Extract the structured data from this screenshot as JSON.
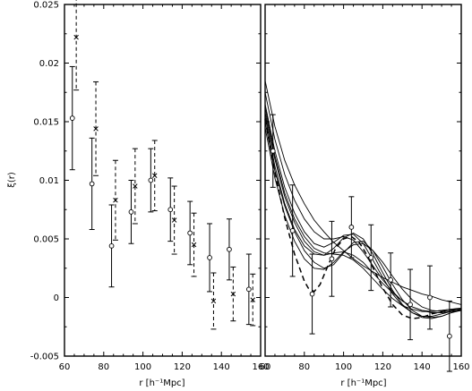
{
  "chart_data": [
    {
      "type": "scatter",
      "ylabel": "ξ(r)",
      "xlabel": "r [h⁻¹Mpc]",
      "xlim": [
        60,
        160
      ],
      "ylim": [
        -0.005,
        0.025
      ],
      "x_ticks": [
        "60",
        "80",
        "100",
        "120",
        "140",
        "160"
      ],
      "y_ticks": [
        "-0.005",
        "0",
        "0.005",
        "0.01",
        "0.015",
        "0.02",
        "0.025"
      ],
      "series": [
        {
          "marker": "circle",
          "errorbar_style": "solid",
          "points": [
            {
              "x": 64,
              "y": 0.0153,
              "err": 0.0044
            },
            {
              "x": 74,
              "y": 0.0097,
              "err": 0.0039
            },
            {
              "x": 84,
              "y": 0.0044,
              "err": 0.0035
            },
            {
              "x": 94,
              "y": 0.0073,
              "err": 0.0027
            },
            {
              "x": 104,
              "y": 0.01,
              "err": 0.0027
            },
            {
              "x": 114,
              "y": 0.0075,
              "err": 0.0027
            },
            {
              "x": 124,
              "y": 0.0055,
              "err": 0.0027
            },
            {
              "x": 134,
              "y": 0.0034,
              "err": 0.0029
            },
            {
              "x": 144,
              "y": 0.0041,
              "err": 0.0026
            },
            {
              "x": 154,
              "y": 0.0007,
              "err": 0.003
            }
          ]
        },
        {
          "marker": "cross",
          "errorbar_style": "dashed",
          "points": [
            {
              "x": 66,
              "y": 0.0222,
              "err": 0.0045
            },
            {
              "x": 76,
              "y": 0.0144,
              "err": 0.004
            },
            {
              "x": 86,
              "y": 0.0083,
              "err": 0.0034
            },
            {
              "x": 96,
              "y": 0.0095,
              "err": 0.0032
            },
            {
              "x": 106,
              "y": 0.0104,
              "err": 0.003
            },
            {
              "x": 116,
              "y": 0.0066,
              "err": 0.0029
            },
            {
              "x": 126,
              "y": 0.0045,
              "err": 0.0027
            },
            {
              "x": 136,
              "y": -0.0003,
              "err": 0.0024
            },
            {
              "x": 146,
              "y": 0.0003,
              "err": 0.0023
            },
            {
              "x": 156,
              "y": -0.0002,
              "err": 0.0022
            }
          ]
        }
      ]
    },
    {
      "type": "line",
      "xlabel": "r [h⁻¹Mpc]",
      "xlim": [
        60,
        160
      ],
      "ylim": [
        -0.005,
        0.025
      ],
      "x_ticks": [
        "60",
        "80",
        "100",
        "120",
        "140",
        "160"
      ],
      "points": [
        {
          "x": 64,
          "y": 0.0125,
          "err": 0.0031
        },
        {
          "x": 74,
          "y": 0.0057,
          "err": 0.0039
        },
        {
          "x": 84,
          "y": 0.0003,
          "err": 0.0034
        },
        {
          "x": 94,
          "y": 0.0033,
          "err": 0.0032
        },
        {
          "x": 104,
          "y": 0.006,
          "err": 0.0026
        },
        {
          "x": 114,
          "y": 0.0034,
          "err": 0.0028
        },
        {
          "x": 124,
          "y": 0.0015,
          "err": 0.0023
        },
        {
          "x": 134,
          "y": -0.0006,
          "err": 0.003
        },
        {
          "x": 144,
          "y": 0.0,
          "err": 0.0027
        },
        {
          "x": 154,
          "y": -0.0033,
          "err": 0.003
        }
      ],
      "models": [
        {
          "style": "solid",
          "x": [
            60,
            65,
            70,
            75,
            80,
            85,
            90,
            95,
            100,
            105,
            110,
            115,
            120,
            125,
            130,
            135,
            140,
            145,
            150,
            155,
            160
          ],
          "y": [
            0.0185,
            0.0146,
            0.0117,
            0.0096,
            0.008,
            0.0066,
            0.0056,
            0.0047,
            0.004,
            0.0033,
            0.0027,
            0.0022,
            0.0017,
            0.0013,
            0.0009,
            0.0006,
            0.0003,
            0.0001,
            -0.0002,
            -0.0004,
            -0.0006
          ]
        },
        {
          "style": "solid",
          "x": [
            60,
            65,
            70,
            75,
            80,
            85,
            90,
            95,
            100,
            105,
            110,
            115,
            120,
            125,
            130,
            135,
            140,
            145,
            150,
            155,
            160
          ],
          "y": [
            0.0175,
            0.0135,
            0.0105,
            0.0083,
            0.0067,
            0.0056,
            0.005,
            0.005,
            0.0052,
            0.0049,
            0.0039,
            0.0027,
            0.0015,
            0.0005,
            -0.0003,
            -0.0008,
            -0.0011,
            -0.0012,
            -0.0011,
            -0.001,
            -0.001
          ]
        },
        {
          "style": "solid",
          "x": [
            60,
            65,
            70,
            75,
            80,
            85,
            90,
            95,
            100,
            105,
            110,
            115,
            120,
            125,
            130,
            135,
            140,
            145,
            150,
            155,
            160
          ],
          "y": [
            0.0165,
            0.0125,
            0.0094,
            0.0072,
            0.0056,
            0.0046,
            0.0043,
            0.0047,
            0.0053,
            0.0054,
            0.0046,
            0.0032,
            0.0017,
            0.0003,
            -0.0007,
            -0.0013,
            -0.0016,
            -0.0016,
            -0.0014,
            -0.0012,
            -0.0011
          ]
        },
        {
          "style": "solid",
          "x": [
            60,
            65,
            70,
            75,
            80,
            85,
            90,
            95,
            100,
            105,
            110,
            115,
            120,
            125,
            130,
            135,
            140,
            145,
            150,
            155,
            160
          ],
          "y": [
            0.0158,
            0.0118,
            0.0086,
            0.0064,
            0.0048,
            0.0039,
            0.0036,
            0.0042,
            0.0051,
            0.0055,
            0.005,
            0.0037,
            0.0021,
            0.0006,
            -0.0006,
            -0.0013,
            -0.0017,
            -0.0018,
            -0.0016,
            -0.0013,
            -0.0011
          ]
        },
        {
          "style": "solid",
          "x": [
            60,
            65,
            70,
            75,
            80,
            85,
            90,
            95,
            100,
            105,
            110,
            115,
            120,
            125,
            130,
            135,
            140,
            145,
            150,
            155,
            160
          ],
          "y": [
            0.015,
            0.0108,
            0.0078,
            0.0056,
            0.004,
            0.003,
            0.0025,
            0.0028,
            0.0038,
            0.0047,
            0.0048,
            0.004,
            0.0026,
            0.0011,
            -0.0002,
            -0.0011,
            -0.0016,
            -0.0017,
            -0.0016,
            -0.0013,
            -0.001
          ]
        },
        {
          "style": "solid",
          "x": [
            60,
            65,
            70,
            75,
            80,
            85,
            90,
            95,
            100,
            105,
            110,
            115,
            120,
            125,
            130,
            135,
            140,
            145,
            150,
            155,
            160
          ],
          "y": [
            0.0145,
            0.0102,
            0.007,
            0.0048,
            0.0033,
            0.0025,
            0.0024,
            0.003,
            0.0039,
            0.0045,
            0.0046,
            0.004,
            0.003,
            0.0018,
            0.0007,
            -0.0002,
            -0.0008,
            -0.0011,
            -0.0012,
            -0.0011,
            -0.001
          ]
        },
        {
          "style": "solid",
          "x": [
            60,
            65,
            70,
            75,
            80,
            85,
            90,
            95,
            100,
            105,
            110,
            115,
            120,
            125,
            130,
            135,
            140,
            145,
            150,
            155,
            160
          ],
          "y": [
            0.0155,
            0.0112,
            0.008,
            0.0058,
            0.0044,
            0.0037,
            0.0036,
            0.0038,
            0.0039,
            0.0036,
            0.003,
            0.0021,
            0.0012,
            0.0004,
            -0.0003,
            -0.0008,
            -0.0011,
            -0.0013,
            -0.0013,
            -0.0012,
            -0.0011
          ]
        },
        {
          "style": "solid",
          "x": [
            60,
            65,
            70,
            75,
            80,
            85,
            90,
            95,
            100,
            105,
            110,
            115,
            120,
            125,
            130,
            135,
            140,
            145,
            150,
            155,
            160
          ],
          "y": [
            0.0162,
            0.0121,
            0.0089,
            0.0067,
            0.0052,
            0.0042,
            0.0038,
            0.0037,
            0.0036,
            0.0032,
            0.0025,
            0.0016,
            0.0007,
            -0.0001,
            -0.0007,
            -0.001,
            -0.0012,
            -0.0012,
            -0.0011,
            -0.001,
            -0.0009
          ]
        },
        {
          "style": "dashed",
          "x": [
            60,
            65,
            70,
            75,
            80,
            82,
            85,
            88,
            92,
            96,
            100,
            104,
            108,
            112,
            116,
            120,
            125,
            130,
            135,
            140,
            145,
            150,
            155,
            160
          ],
          "y": [
            0.0152,
            0.0107,
            0.0068,
            0.0037,
            0.0014,
            0.0008,
            0.0005,
            0.0011,
            0.0027,
            0.0042,
            0.005,
            0.0052,
            0.0047,
            0.0036,
            0.0022,
            0.0008,
            -0.0006,
            -0.0015,
            -0.0018,
            -0.0017,
            -0.0014,
            -0.0012,
            -0.0011,
            -0.0011
          ]
        }
      ]
    }
  ]
}
